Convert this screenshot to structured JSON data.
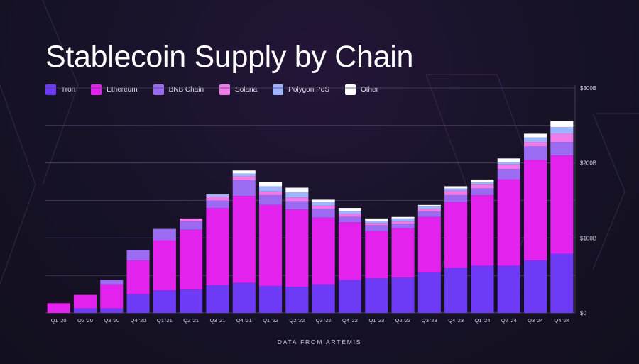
{
  "title": "Stablecoin Supply by Chain",
  "footer": "DATA FROM ARTEMIS",
  "legend": [
    {
      "name": "Tron",
      "color": "#6d3bf5"
    },
    {
      "name": "Ethereum",
      "color": "#e322ee"
    },
    {
      "name": "BNB Chain",
      "color": "#9b6cf2"
    },
    {
      "name": "Solana",
      "color": "#f07ae9"
    },
    {
      "name": "Polygon PoS",
      "color": "#9fb4ff"
    },
    {
      "name": "Other",
      "color": "#ffffff"
    }
  ],
  "chart_data": {
    "type": "bar",
    "stacked": true,
    "title": "Stablecoin Supply by Chain",
    "xlabel": "",
    "ylabel": "",
    "ylim": [
      0,
      300
    ],
    "yticks": [
      0,
      100,
      200,
      300
    ],
    "ytick_labels": [
      "$0",
      "$100B",
      "$200B",
      "$300B"
    ],
    "grid": true,
    "legend_position": "top-left",
    "categories": [
      "Q1 '20",
      "Q2 '20",
      "Q3 '20",
      "Q4 '20",
      "Q1 '21",
      "Q2 '21",
      "Q3 '21",
      "Q4 '21",
      "Q1 '22",
      "Q2 '22",
      "Q3 '22",
      "Q4 '22",
      "Q1 '23",
      "Q2 '23",
      "Q3 '23",
      "Q4 '23",
      "Q1 '24",
      "Q2 '24",
      "Q3 '24",
      "Q4 '24"
    ],
    "series": [
      {
        "name": "Tron",
        "color": "#6d3bf5",
        "values": [
          0,
          6,
          6,
          25,
          30,
          31,
          37,
          40,
          36,
          35,
          38,
          44,
          46,
          47,
          54,
          60,
          63,
          63,
          70,
          79
        ]
      },
      {
        "name": "Ethereum",
        "color": "#e322ee",
        "values": [
          13,
          18,
          32,
          45,
          67,
          80,
          103,
          116,
          108,
          103,
          89,
          77,
          63,
          66,
          74,
          88,
          94,
          115,
          134,
          131
        ]
      },
      {
        "name": "BNB Chain",
        "color": "#9b6cf2",
        "values": [
          0,
          0,
          6,
          14,
          15,
          11,
          10,
          21,
          13,
          11,
          12,
          7,
          8,
          6,
          7,
          9,
          9,
          14,
          18,
          18
        ]
      },
      {
        "name": "Solana",
        "color": "#f07ae9",
        "values": [
          0,
          0,
          0,
          0,
          0,
          4,
          5,
          5,
          5,
          5,
          4,
          4,
          3,
          3,
          4,
          6,
          5,
          6,
          6,
          11
        ]
      },
      {
        "name": "Polygon PoS",
        "color": "#9fb4ff",
        "values": [
          0,
          0,
          0,
          0,
          0,
          0,
          3,
          4,
          7,
          7,
          5,
          4,
          3,
          4,
          3,
          3,
          3,
          3,
          6,
          9
        ]
      },
      {
        "name": "Other",
        "color": "#ffffff",
        "values": [
          0,
          0,
          0,
          0,
          0,
          0,
          1,
          4,
          6,
          6,
          3,
          4,
          3,
          2,
          2,
          3,
          4,
          5,
          5,
          8
        ]
      }
    ]
  }
}
